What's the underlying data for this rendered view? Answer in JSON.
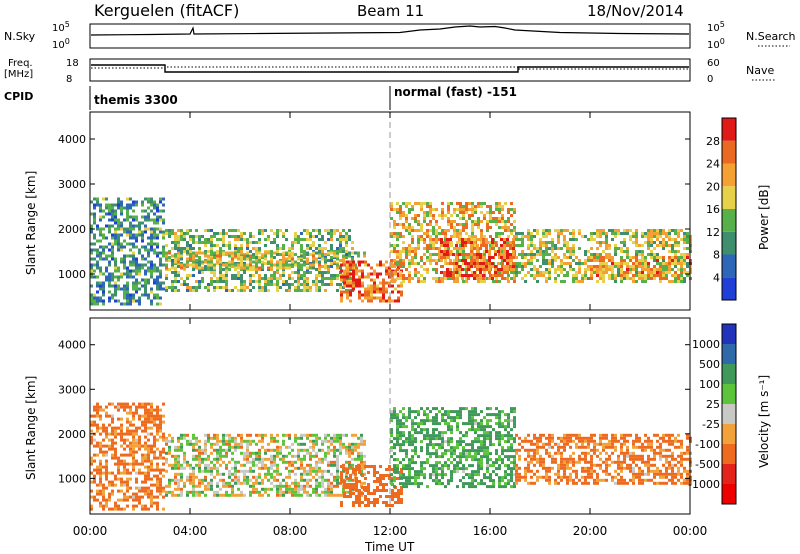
{
  "header": {
    "station": "Kerguelen (fitACF)",
    "beam": "Beam 11",
    "date": "18/Nov/2014"
  },
  "panels": {
    "nsky": {
      "left_label": "N.Sky",
      "left_ticks": [
        "10^5",
        "10^0"
      ],
      "right_ticks": [
        "10^5",
        "10^0"
      ],
      "right_label": "N.Search"
    },
    "freq": {
      "left_label_1": "Freq.",
      "left_label_2": "[MHz]",
      "left_ticks": [
        "18",
        "8"
      ],
      "right_ticks": [
        "60",
        "0"
      ],
      "right_label": "Nave"
    },
    "cpid": {
      "label": "CPID",
      "modes": [
        {
          "name": "themis 3300",
          "start_hour": 0
        },
        {
          "name": "normal (fast) -151",
          "start_hour": 12
        }
      ]
    }
  },
  "chart_data": [
    {
      "type": "heatmap",
      "quantity": "power",
      "ylabel": "Slant Range [km]",
      "xlabel": "Time UT",
      "x_ticks": [
        "00:00",
        "04:00",
        "08:00",
        "12:00",
        "16:00",
        "20:00",
        "00:00"
      ],
      "x_tick_hours": [
        0,
        4,
        8,
        12,
        16,
        20,
        24
      ],
      "y_ticks": [
        1000,
        2000,
        3000,
        4000
      ],
      "ylim": [
        200,
        4600
      ],
      "xlim_hours": [
        0,
        24
      ],
      "colorbar": {
        "label": "Power [dB]",
        "range": [
          0,
          32
        ],
        "ticks": [
          4,
          8,
          12,
          16,
          20,
          24,
          28
        ],
        "colors": [
          "#1f3fd6",
          "#2e66b8",
          "#3f8f6f",
          "#58b04a",
          "#e7d14a",
          "#f5a032",
          "#ea6a24",
          "#e01a16"
        ]
      },
      "echo_regions": [
        {
          "t0": 0.0,
          "t1": 3.0,
          "r0": 300,
          "r1": 2700,
          "value": 10
        },
        {
          "t0": 3.0,
          "t1": 10.5,
          "r0": 600,
          "r1": 2000,
          "value": 14
        },
        {
          "t0": 3.0,
          "t1": 11.0,
          "r0": 1100,
          "r1": 1500,
          "value": 18
        },
        {
          "t0": 10.0,
          "t1": 12.5,
          "r0": 400,
          "r1": 1300,
          "value": 26
        },
        {
          "t0": 12.0,
          "t1": 17.0,
          "r0": 800,
          "r1": 2600,
          "value": 20
        },
        {
          "t0": 14.0,
          "t1": 17.0,
          "r0": 900,
          "r1": 1800,
          "value": 27
        },
        {
          "t0": 17.0,
          "t1": 24.0,
          "r0": 800,
          "r1": 2000,
          "value": 17
        },
        {
          "t0": 20.0,
          "t1": 24.0,
          "r0": 900,
          "r1": 1400,
          "value": 22
        }
      ]
    },
    {
      "type": "heatmap",
      "quantity": "velocity",
      "ylabel": "Slant Range [km]",
      "xlabel": "Time UT",
      "x_ticks": [
        "00:00",
        "04:00",
        "08:00",
        "12:00",
        "16:00",
        "20:00",
        "00:00"
      ],
      "x_tick_hours": [
        0,
        4,
        8,
        12,
        16,
        20,
        24
      ],
      "y_ticks": [
        1000,
        2000,
        3000,
        4000
      ],
      "ylim": [
        200,
        4600
      ],
      "xlim_hours": [
        0,
        24
      ],
      "colorbar": {
        "label": "Velocity [m s⁻¹]",
        "tick_labels": [
          "1000",
          "500",
          "100",
          "25",
          "-25",
          "-100",
          "-500",
          "-1000"
        ],
        "colors": [
          "#2233bb",
          "#2e6aaa",
          "#3f9a5a",
          "#5bc43a",
          "#c8c8c4",
          "#f2a23a",
          "#ee6a1f",
          "#e4231a",
          "#ee0000"
        ]
      },
      "echo_regions": [
        {
          "t0": 0.0,
          "t1": 3.0,
          "r0": 300,
          "r1": 2700,
          "value": -150
        },
        {
          "t0": 3.0,
          "t1": 11.0,
          "r0": 600,
          "r1": 2000,
          "value": 0
        },
        {
          "t0": 10.0,
          "t1": 12.5,
          "r0": 400,
          "r1": 1300,
          "value": -300
        },
        {
          "t0": 12.0,
          "t1": 17.0,
          "r0": 800,
          "r1": 2600,
          "value": 150
        },
        {
          "t0": 17.0,
          "t1": 24.0,
          "r0": 900,
          "r1": 2000,
          "value": -150
        }
      ]
    }
  ]
}
